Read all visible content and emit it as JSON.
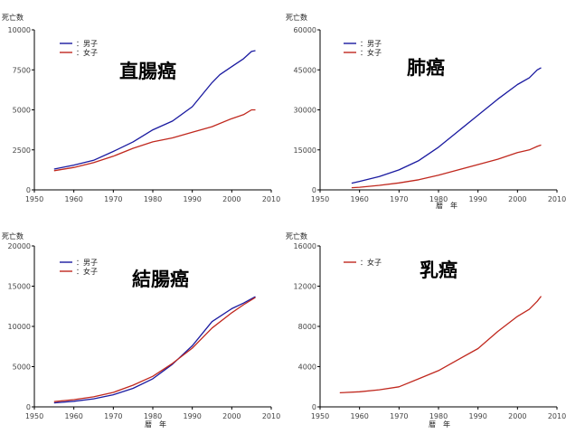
{
  "chart_data": [
    {
      "type": "line",
      "title": "直腸癌",
      "ylabel": "死亡数",
      "xlabel": "",
      "xlim": [
        1950,
        2010
      ],
      "ylim": [
        0,
        10000
      ],
      "xticks": [
        1950,
        1960,
        1970,
        1980,
        1990,
        2000,
        2010
      ],
      "yticks": [
        0,
        2500,
        5000,
        7500,
        10000
      ],
      "legend_position": "top-left",
      "series": [
        {
          "name": "：男子",
          "color": "#1a1aa0",
          "x": [
            1955,
            1960,
            1965,
            1970,
            1975,
            1980,
            1985,
            1990,
            1993,
            1995,
            1997,
            2000,
            2003,
            2005,
            2006
          ],
          "y": [
            1300,
            1550,
            1850,
            2400,
            3000,
            3750,
            4300,
            5200,
            6100,
            6700,
            7200,
            7700,
            8200,
            8650,
            8700
          ]
        },
        {
          "name": "：女子",
          "color": "#c0281e",
          "x": [
            1955,
            1960,
            1965,
            1970,
            1975,
            1980,
            1985,
            1990,
            1995,
            2000,
            2003,
            2005,
            2006
          ],
          "y": [
            1200,
            1400,
            1700,
            2100,
            2600,
            3000,
            3250,
            3600,
            3950,
            4450,
            4700,
            5000,
            5000
          ]
        }
      ]
    },
    {
      "type": "line",
      "title": "肺癌",
      "ylabel": "死亡数",
      "xlabel": "暦　年",
      "xlim": [
        1950,
        2010
      ],
      "ylim": [
        0,
        60000
      ],
      "xticks": [
        1950,
        1960,
        1970,
        1980,
        1990,
        2000,
        2010
      ],
      "yticks": [
        0,
        15000,
        30000,
        45000,
        60000
      ],
      "legend_position": "top-left",
      "series": [
        {
          "name": "：男子",
          "color": "#1a1aa0",
          "x": [
            1958,
            1960,
            1965,
            1970,
            1975,
            1980,
            1985,
            1990,
            1995,
            2000,
            2003,
            2005,
            2006
          ],
          "y": [
            2500,
            3200,
            5000,
            7500,
            11000,
            16000,
            22000,
            28000,
            34000,
            39500,
            42000,
            45000,
            45800
          ]
        },
        {
          "name": "：女子",
          "color": "#c0281e",
          "x": [
            1958,
            1960,
            1965,
            1970,
            1975,
            1980,
            1985,
            1990,
            1995,
            2000,
            2003,
            2005,
            2006
          ],
          "y": [
            800,
            1000,
            1700,
            2600,
            3800,
            5500,
            7500,
            9500,
            11500,
            14000,
            15000,
            16300,
            16800
          ]
        }
      ]
    },
    {
      "type": "line",
      "title": "結腸癌",
      "ylabel": "死亡数",
      "xlabel": "暦　年",
      "xlim": [
        1950,
        2010
      ],
      "ylim": [
        0,
        20000
      ],
      "xticks": [
        1950,
        1960,
        1970,
        1980,
        1990,
        2000,
        2010
      ],
      "yticks": [
        0,
        5000,
        10000,
        15000,
        20000
      ],
      "legend_position": "top-left",
      "series": [
        {
          "name": "：男子",
          "color": "#1a1aa0",
          "x": [
            1955,
            1960,
            1965,
            1970,
            1975,
            1980,
            1985,
            1990,
            1995,
            2000,
            2003,
            2006
          ],
          "y": [
            500,
            700,
            1000,
            1500,
            2300,
            3500,
            5300,
            7600,
            10600,
            12200,
            12900,
            13700
          ]
        },
        {
          "name": "：女子",
          "color": "#c0281e",
          "x": [
            1955,
            1960,
            1965,
            1970,
            1975,
            1980,
            1985,
            1990,
            1995,
            2000,
            2003,
            2006
          ],
          "y": [
            650,
            900,
            1250,
            1800,
            2700,
            3800,
            5400,
            7300,
            9800,
            11700,
            12700,
            13600
          ]
        }
      ]
    },
    {
      "type": "line",
      "title": "乳癌",
      "ylabel": "死亡数",
      "xlabel": "暦　年",
      "xlim": [
        1950,
        2010
      ],
      "ylim": [
        0,
        16000
      ],
      "xticks": [
        1950,
        1960,
        1970,
        1980,
        1990,
        2000,
        2010
      ],
      "yticks": [
        0,
        4000,
        8000,
        12000,
        16000
      ],
      "legend_position": "top-left",
      "series": [
        {
          "name": "：女子",
          "color": "#c0281e",
          "x": [
            1955,
            1960,
            1965,
            1970,
            1975,
            1980,
            1985,
            1990,
            1995,
            2000,
            2003,
            2005,
            2006
          ],
          "y": [
            1400,
            1500,
            1700,
            2000,
            2800,
            3600,
            4700,
            5800,
            7500,
            9000,
            9700,
            10500,
            11000
          ]
        }
      ]
    }
  ]
}
